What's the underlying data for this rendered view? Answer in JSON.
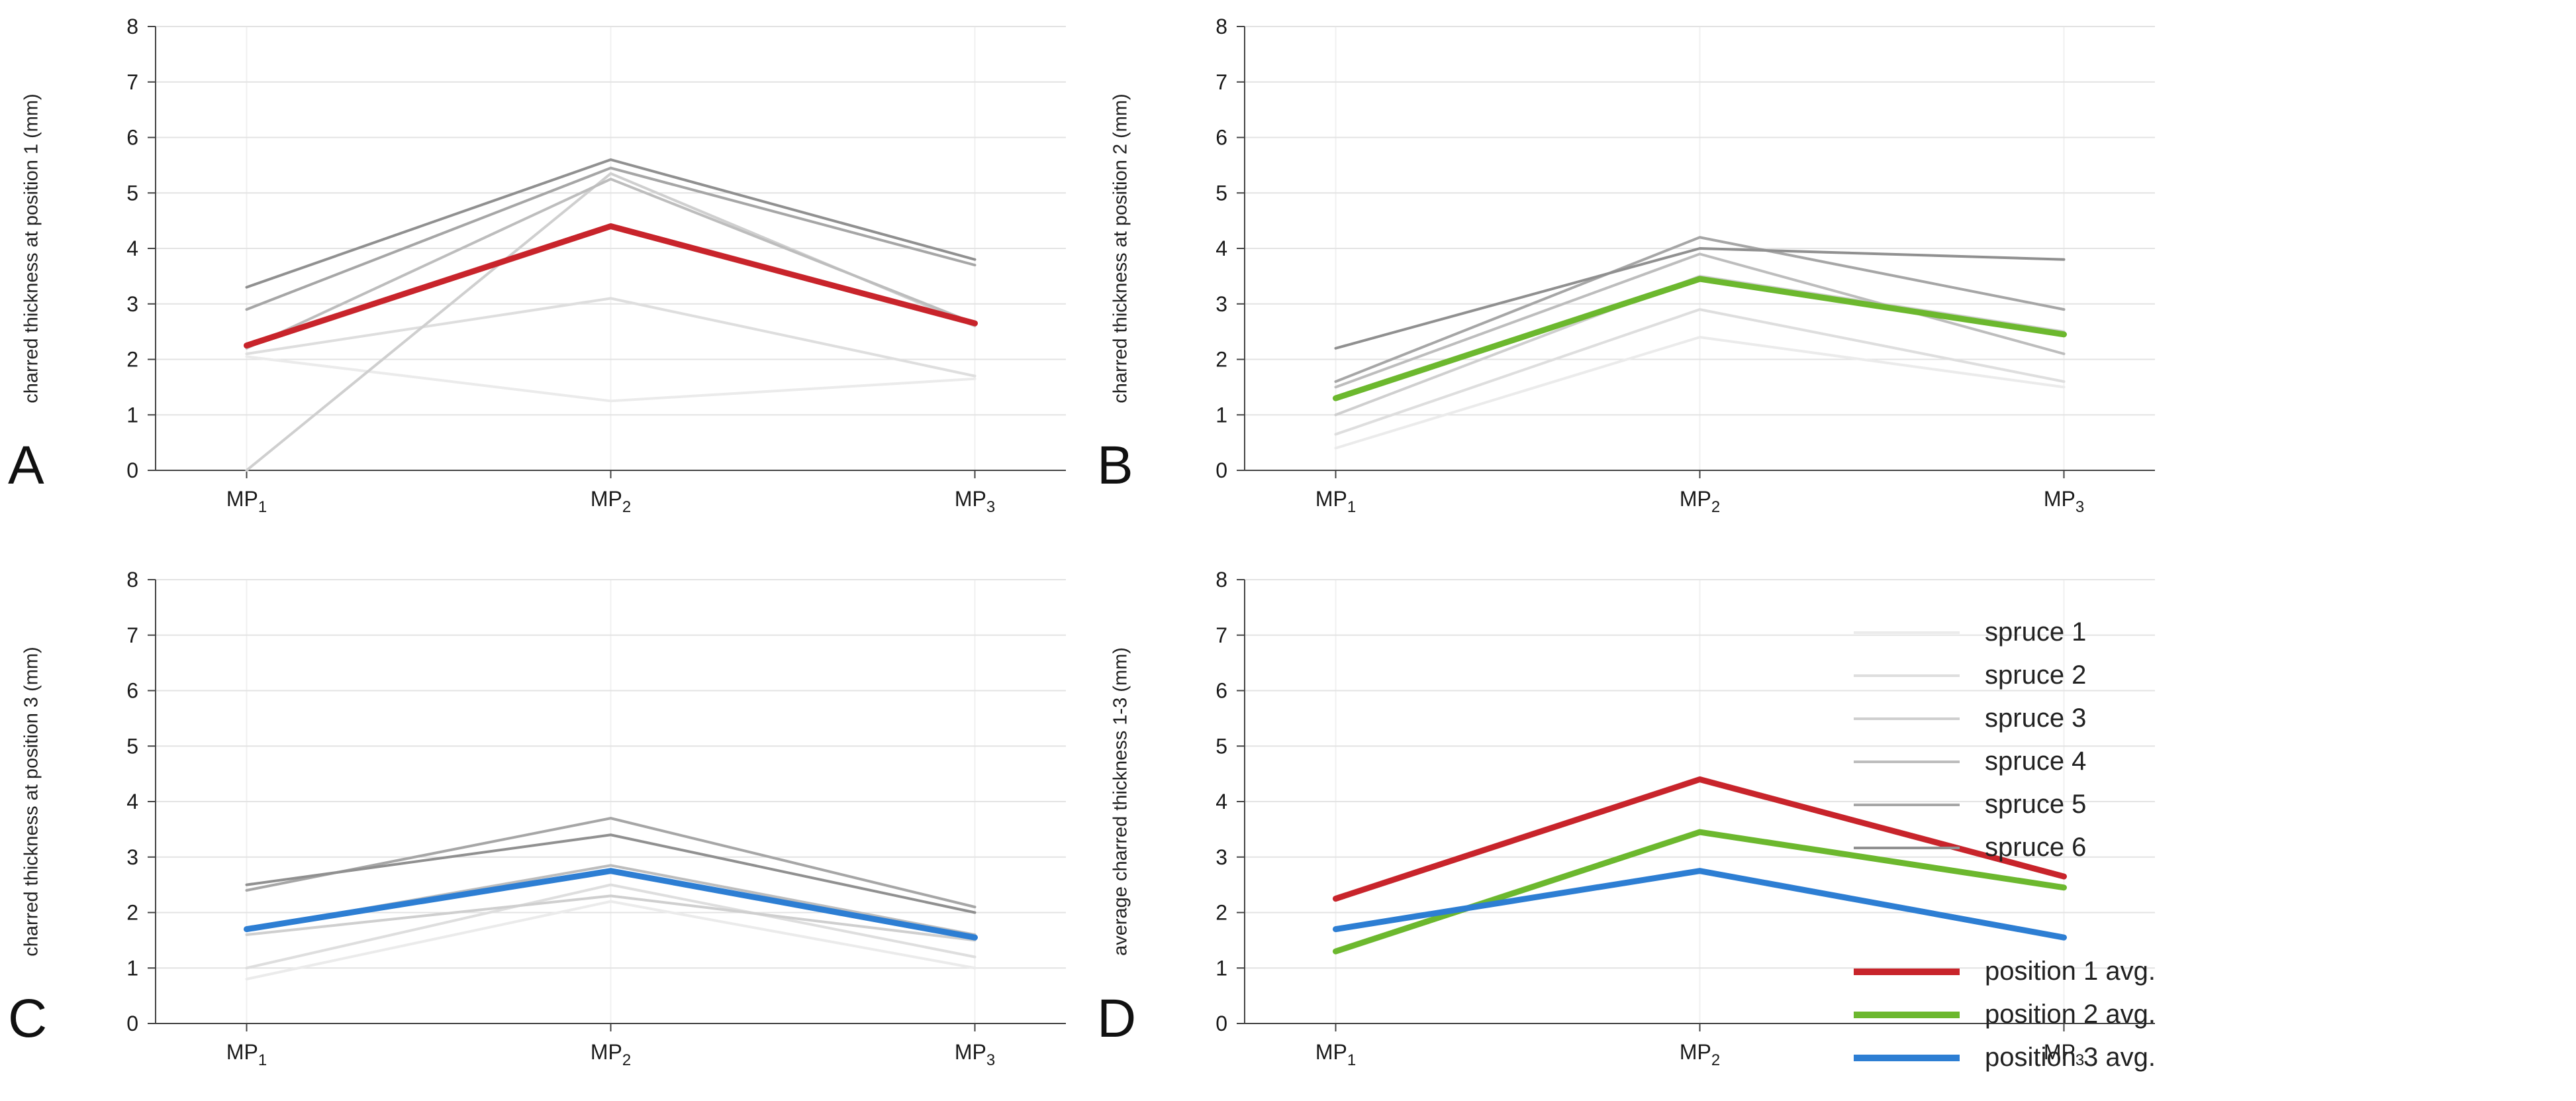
{
  "figure": {
    "background": "#ffffff",
    "accent_colors": {
      "red": "#c8242b",
      "green": "#6cb82e",
      "blue": "#2d7ed3"
    }
  },
  "legend": {
    "spruce_items": [
      {
        "label": "spruce 1",
        "color": "#ebebeb"
      },
      {
        "label": "spruce 2",
        "color": "#dedede"
      },
      {
        "label": "spruce 3",
        "color": "#cfcfcf"
      },
      {
        "label": "spruce 4",
        "color": "#bdbdbd"
      },
      {
        "label": "spruce 5",
        "color": "#a6a6a6"
      },
      {
        "label": "spruce 6",
        "color": "#909090"
      }
    ],
    "avg_items": [
      {
        "label": "position 1 avg.",
        "color": "#c8242b"
      },
      {
        "label": "position 2 avg.",
        "color": "#6cb82e"
      },
      {
        "label": "position 3 avg.",
        "color": "#2d7ed3"
      }
    ]
  },
  "chart_data": [
    {
      "type": "line",
      "panel_label": "A",
      "ylabel": "charred thickness at position 1 (mm)",
      "xlabel": "",
      "categories": [
        "MP1",
        "MP2",
        "MP3"
      ],
      "x_ticks": [
        {
          "base": "MP",
          "sub": "1"
        },
        {
          "base": "MP",
          "sub": "2"
        },
        {
          "base": "MP",
          "sub": "3"
        }
      ],
      "ylim": [
        0,
        8
      ],
      "yticks": [
        0,
        1,
        2,
        3,
        4,
        5,
        6,
        7,
        8
      ],
      "grid": true,
      "series": [
        {
          "name": "spruce 1",
          "color": "#ebebeb",
          "width": 4,
          "values": [
            2.05,
            1.25,
            1.65
          ]
        },
        {
          "name": "spruce 2",
          "color": "#dedede",
          "width": 4,
          "values": [
            2.1,
            3.1,
            1.7
          ]
        },
        {
          "name": "spruce 3",
          "color": "#cfcfcf",
          "width": 4,
          "values": [
            0.0,
            5.35,
            2.6
          ]
        },
        {
          "name": "spruce 4",
          "color": "#bdbdbd",
          "width": 4,
          "values": [
            2.2,
            5.25,
            2.65
          ]
        },
        {
          "name": "spruce 5",
          "color": "#a6a6a6",
          "width": 4,
          "values": [
            2.9,
            5.45,
            3.7
          ]
        },
        {
          "name": "spruce 6",
          "color": "#909090",
          "width": 4,
          "values": [
            3.3,
            5.6,
            3.8
          ]
        },
        {
          "name": "position 1 avg.",
          "color": "#c8242b",
          "width": 9,
          "values": [
            2.25,
            4.4,
            2.65
          ]
        }
      ]
    },
    {
      "type": "line",
      "panel_label": "B",
      "ylabel": "charred thickness at position 2 (mm)",
      "xlabel": "",
      "categories": [
        "MP1",
        "MP2",
        "MP3"
      ],
      "x_ticks": [
        {
          "base": "MP",
          "sub": "1"
        },
        {
          "base": "MP",
          "sub": "2"
        },
        {
          "base": "MP",
          "sub": "3"
        }
      ],
      "ylim": [
        0,
        8
      ],
      "yticks": [
        0,
        1,
        2,
        3,
        4,
        5,
        6,
        7,
        8
      ],
      "grid": true,
      "series": [
        {
          "name": "spruce 1",
          "color": "#ebebeb",
          "width": 4,
          "values": [
            0.4,
            2.4,
            1.5
          ]
        },
        {
          "name": "spruce 2",
          "color": "#dedede",
          "width": 4,
          "values": [
            0.65,
            2.9,
            1.6
          ]
        },
        {
          "name": "spruce 3",
          "color": "#cfcfcf",
          "width": 4,
          "values": [
            1.0,
            3.5,
            2.5
          ]
        },
        {
          "name": "spruce 4",
          "color": "#bdbdbd",
          "width": 4,
          "values": [
            1.5,
            3.9,
            2.1
          ]
        },
        {
          "name": "spruce 5",
          "color": "#a6a6a6",
          "width": 4,
          "values": [
            1.6,
            4.2,
            2.9
          ]
        },
        {
          "name": "spruce 6",
          "color": "#909090",
          "width": 4,
          "values": [
            2.2,
            4.0,
            3.8
          ]
        },
        {
          "name": "position 2 avg.",
          "color": "#6cb82e",
          "width": 9,
          "values": [
            1.3,
            3.45,
            2.45
          ]
        }
      ]
    },
    {
      "type": "line",
      "panel_label": "C",
      "ylabel": "charred thickness at position 3 (mm)",
      "xlabel": "",
      "categories": [
        "MP1",
        "MP2",
        "MP3"
      ],
      "x_ticks": [
        {
          "base": "MP",
          "sub": "1"
        },
        {
          "base": "MP",
          "sub": "2"
        },
        {
          "base": "MP",
          "sub": "3"
        }
      ],
      "ylim": [
        0,
        8
      ],
      "yticks": [
        0,
        1,
        2,
        3,
        4,
        5,
        6,
        7,
        8
      ],
      "grid": true,
      "series": [
        {
          "name": "spruce 1",
          "color": "#ebebeb",
          "width": 4,
          "values": [
            0.8,
            2.2,
            1.0
          ]
        },
        {
          "name": "spruce 2",
          "color": "#dedede",
          "width": 4,
          "values": [
            1.0,
            2.5,
            1.2
          ]
        },
        {
          "name": "spruce 3",
          "color": "#cfcfcf",
          "width": 4,
          "values": [
            1.6,
            2.3,
            1.5
          ]
        },
        {
          "name": "spruce 4",
          "color": "#bdbdbd",
          "width": 4,
          "values": [
            1.7,
            2.85,
            1.6
          ]
        },
        {
          "name": "spruce 5",
          "color": "#a6a6a6",
          "width": 4,
          "values": [
            2.4,
            3.7,
            2.1
          ]
        },
        {
          "name": "spruce 6",
          "color": "#909090",
          "width": 4,
          "values": [
            2.5,
            3.4,
            2.0
          ]
        },
        {
          "name": "position 3 avg.",
          "color": "#2d7ed3",
          "width": 9,
          "values": [
            1.7,
            2.75,
            1.55
          ]
        }
      ]
    },
    {
      "type": "line",
      "panel_label": "D",
      "ylabel": "average charred thickness 1-3 (mm)",
      "xlabel": "",
      "categories": [
        "MP1",
        "MP2",
        "MP3"
      ],
      "x_ticks": [
        {
          "base": "MP",
          "sub": "1"
        },
        {
          "base": "MP",
          "sub": "2"
        },
        {
          "base": "MP",
          "sub": "3"
        }
      ],
      "ylim": [
        0,
        8
      ],
      "yticks": [
        0,
        1,
        2,
        3,
        4,
        5,
        6,
        7,
        8
      ],
      "grid": true,
      "legend_position": "right",
      "series": [
        {
          "name": "position 1 avg.",
          "color": "#c8242b",
          "width": 9,
          "values": [
            2.25,
            4.4,
            2.65
          ]
        },
        {
          "name": "position 2 avg.",
          "color": "#6cb82e",
          "width": 9,
          "values": [
            1.3,
            3.45,
            2.45
          ]
        },
        {
          "name": "position 3 avg.",
          "color": "#2d7ed3",
          "width": 9,
          "values": [
            1.7,
            2.75,
            1.55
          ]
        }
      ]
    }
  ]
}
